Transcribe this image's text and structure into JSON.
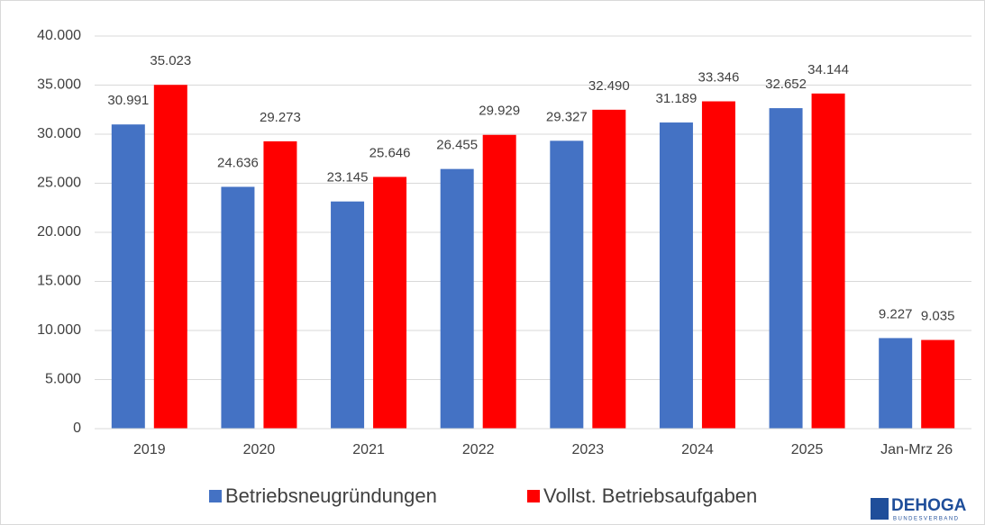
{
  "chart_data": {
    "type": "bar",
    "categories": [
      "2019",
      "2020",
      "2021",
      "2022",
      "2023",
      "2024",
      "2025",
      "Jan-Mrz 26"
    ],
    "series": [
      {
        "name": "Betriebsneugründungen",
        "color": "#4472c4",
        "values": [
          30991,
          24636,
          23145,
          26455,
          29327,
          31189,
          32652,
          9227
        ],
        "value_labels": [
          "30.991",
          "24.636",
          "23.145",
          "26.455",
          "29.327",
          "31.189",
          "32.652",
          "9.227"
        ]
      },
      {
        "name": "Vollst. Betriebsaufgaben",
        "color": "#ff0000",
        "values": [
          35023,
          29273,
          25646,
          29929,
          32490,
          33346,
          34144,
          9035
        ],
        "value_labels": [
          "35.023",
          "29.273",
          "25.646",
          "29.929",
          "32.490",
          "33.346",
          "34.144",
          "9.035"
        ]
      }
    ],
    "ylim": [
      0,
      40000
    ],
    "yticks": [
      0,
      {
        "value": 5000,
        "label": "5.000"
      },
      {
        "value": 10000,
        "label": "10.000"
      },
      {
        "value": 15000,
        "label": "15.000"
      },
      {
        "value": 20000,
        "label": "20.000"
      },
      {
        "value": 25000,
        "label": "25.000"
      },
      {
        "value": 30000,
        "label": "30.000"
      },
      {
        "value": 35000,
        "label": "35.000"
      },
      {
        "value": 40000,
        "label": "40.000"
      }
    ],
    "grid": true,
    "legend": "bottom"
  },
  "logo": {
    "name": "DEHOGA",
    "subtitle": "BUNDESVERBAND"
  }
}
